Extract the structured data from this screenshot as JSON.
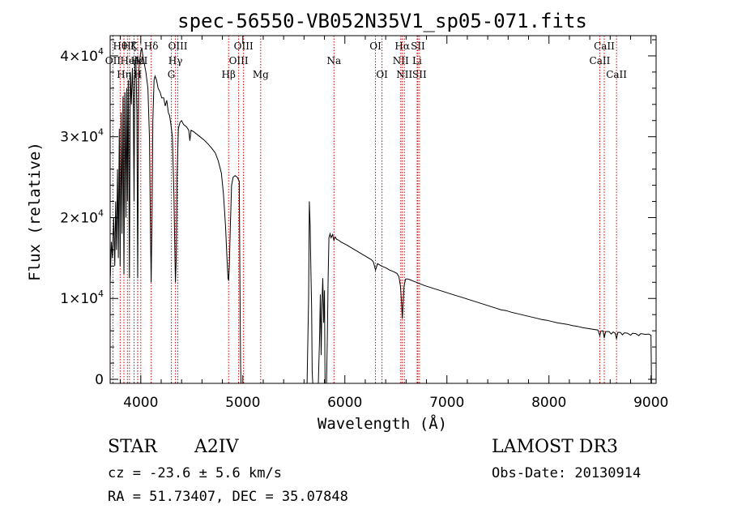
{
  "chart_data": {
    "type": "line",
    "title": "spec-56550-VB052N35V1_sp05-071.fits",
    "xlabel": "Wavelength (Å)",
    "ylabel": "Flux (relative)",
    "xlim": [
      3700,
      9050
    ],
    "ylim": [
      -500,
      42500
    ],
    "xticks": [
      {
        "value": 4000,
        "label": "4000"
      },
      {
        "value": 5000,
        "label": "5000"
      },
      {
        "value": 6000,
        "label": "6000"
      },
      {
        "value": 7000,
        "label": "7000"
      },
      {
        "value": 8000,
        "label": "8000"
      },
      {
        "value": 9000,
        "label": "9000"
      }
    ],
    "yticks": [
      {
        "value": 0,
        "label": "0"
      },
      {
        "value": 10000,
        "label": "1×10",
        "exp": "4"
      },
      {
        "value": 20000,
        "label": "2×10",
        "exp": "4"
      },
      {
        "value": 30000,
        "label": "3×10",
        "exp": "4"
      },
      {
        "value": 40000,
        "label": "4×10",
        "exp": "4"
      }
    ],
    "line_color": "#d80000",
    "spectral_lines": [
      {
        "wavelength": 3727,
        "label": "OII",
        "row": 2
      },
      {
        "wavelength": 3798,
        "label": "Hθ",
        "row": 1
      },
      {
        "wavelength": 3835,
        "label": "Hη",
        "row": 3
      },
      {
        "wavelength": 3869,
        "label": "He",
        "row": 2
      },
      {
        "wavelength": 3889,
        "label": "Hζ",
        "row": 1
      },
      {
        "wavelength": 3934,
        "label": "K",
        "row": 1
      },
      {
        "wavelength": 3969,
        "label": "H",
        "row": 3
      },
      {
        "wavelength": 3970,
        "label": "Hε",
        "row": 2
      },
      {
        "wavelength": 4000,
        "label": "AlI",
        "row": 2
      },
      {
        "wavelength": 4102,
        "label": "Hδ",
        "row": 1
      },
      {
        "wavelength": 4300,
        "label": "G",
        "row": 3
      },
      {
        "wavelength": 4340,
        "label": "Hγ",
        "row": 2
      },
      {
        "wavelength": 4363,
        "label": "OIII",
        "row": 1
      },
      {
        "wavelength": 4861,
        "label": "Hβ",
        "row": 3
      },
      {
        "wavelength": 4959,
        "label": "OIII",
        "row": 2
      },
      {
        "wavelength": 5007,
        "label": "OIII",
        "row": 1
      },
      {
        "wavelength": 5175,
        "label": "Mg",
        "row": 3
      },
      {
        "wavelength": 5893,
        "label": "Na",
        "row": 2
      },
      {
        "wavelength": 6300,
        "label": "OI",
        "row": 1
      },
      {
        "wavelength": 6364,
        "label": "OI",
        "row": 3
      },
      {
        "wavelength": 6548,
        "label": "NII",
        "row": 2
      },
      {
        "wavelength": 6563,
        "label": "Hα",
        "row": 1
      },
      {
        "wavelength": 6583,
        "label": "NII",
        "row": 3
      },
      {
        "wavelength": 6708,
        "label": "Li",
        "row": 2
      },
      {
        "wavelength": 6716,
        "label": "SII",
        "row": 1
      },
      {
        "wavelength": 6731,
        "label": "SII",
        "row": 3
      },
      {
        "wavelength": 8498,
        "label": "CaII",
        "row": 2
      },
      {
        "wavelength": 8542,
        "label": "CaII",
        "row": 1
      },
      {
        "wavelength": 8662,
        "label": "CaII",
        "row": 3
      }
    ],
    "spectrum": [
      [
        3700,
        12000
      ],
      [
        3712,
        17000
      ],
      [
        3722,
        15000
      ],
      [
        3735,
        20000
      ],
      [
        3745,
        14000
      ],
      [
        3754,
        22000
      ],
      [
        3762,
        16000
      ],
      [
        3772,
        26000
      ],
      [
        3780,
        15000
      ],
      [
        3790,
        31000
      ],
      [
        3798,
        14000
      ],
      [
        3808,
        33000
      ],
      [
        3816,
        18000
      ],
      [
        3826,
        35000
      ],
      [
        3835,
        13000
      ],
      [
        3845,
        35500
      ],
      [
        3855,
        20000
      ],
      [
        3863,
        36000
      ],
      [
        3870,
        22000
      ],
      [
        3878,
        37000
      ],
      [
        3889,
        12500
      ],
      [
        3898,
        38000
      ],
      [
        3908,
        34000
      ],
      [
        3918,
        38500
      ],
      [
        3926,
        35000
      ],
      [
        3934,
        22000
      ],
      [
        3942,
        39000
      ],
      [
        3952,
        40000
      ],
      [
        3962,
        33000
      ],
      [
        3970,
        12500
      ],
      [
        3980,
        38000
      ],
      [
        3990,
        39500
      ],
      [
        4000,
        40500
      ],
      [
        4010,
        41000
      ],
      [
        4020,
        40000
      ],
      [
        4035,
        39000
      ],
      [
        4050,
        38000
      ],
      [
        4070,
        36000
      ],
      [
        4085,
        30000
      ],
      [
        4095,
        18000
      ],
      [
        4102,
        12000
      ],
      [
        4110,
        20000
      ],
      [
        4118,
        32000
      ],
      [
        4130,
        37000
      ],
      [
        4140,
        37500
      ],
      [
        4155,
        37000
      ],
      [
        4170,
        36000
      ],
      [
        4190,
        35500
      ],
      [
        4205,
        34800
      ],
      [
        4225,
        34800
      ],
      [
        4240,
        33800
      ],
      [
        4255,
        34500
      ],
      [
        4270,
        33000
      ],
      [
        4283,
        32600
      ],
      [
        4295,
        31500
      ],
      [
        4310,
        30000
      ],
      [
        4325,
        23000
      ],
      [
        4335,
        15000
      ],
      [
        4340,
        12000
      ],
      [
        4348,
        15000
      ],
      [
        4356,
        25000
      ],
      [
        4368,
        31000
      ],
      [
        4385,
        31800
      ],
      [
        4400,
        32000
      ],
      [
        4420,
        31500
      ],
      [
        4450,
        31200
      ],
      [
        4470,
        30800
      ],
      [
        4481,
        29500
      ],
      [
        4492,
        30800
      ],
      [
        4520,
        30600
      ],
      [
        4550,
        30300
      ],
      [
        4580,
        30000
      ],
      [
        4620,
        29600
      ],
      [
        4660,
        29100
      ],
      [
        4700,
        28500
      ],
      [
        4730,
        28000
      ],
      [
        4760,
        27000
      ],
      [
        4790,
        25500
      ],
      [
        4810,
        23000
      ],
      [
        4830,
        19000
      ],
      [
        4845,
        15000
      ],
      [
        4855,
        12500
      ],
      [
        4861,
        12200
      ],
      [
        4868,
        14000
      ],
      [
        4878,
        19000
      ],
      [
        4890,
        24000
      ],
      [
        4905,
        25000
      ],
      [
        4925,
        25200
      ],
      [
        4945,
        25000
      ],
      [
        4965,
        24500
      ],
      [
        4972,
        12000
      ],
      [
        4978,
        2000
      ],
      [
        4982,
        -500
      ],
      [
        5630,
        -500
      ],
      [
        5645,
        10000
      ],
      [
        5652,
        22000
      ],
      [
        5660,
        19000
      ],
      [
        5668,
        13000
      ],
      [
        5674,
        9000
      ],
      [
        5680,
        1000
      ],
      [
        5685,
        -500
      ],
      [
        5740,
        -500
      ],
      [
        5752,
        5000
      ],
      [
        5760,
        10500
      ],
      [
        5768,
        3000
      ],
      [
        5775,
        9000
      ],
      [
        5784,
        12500
      ],
      [
        5792,
        7000
      ],
      [
        5800,
        11000
      ],
      [
        5806,
        -500
      ],
      [
        5820,
        -500
      ],
      [
        5828,
        5000
      ],
      [
        5836,
        12500
      ],
      [
        5844,
        17500
      ],
      [
        5855,
        18000
      ],
      [
        5865,
        17500
      ],
      [
        5880,
        17900
      ],
      [
        5892,
        17200
      ],
      [
        5905,
        17600
      ],
      [
        5920,
        17300
      ],
      [
        5940,
        17200
      ],
      [
        5960,
        17000
      ],
      [
        5990,
        16800
      ],
      [
        6020,
        16600
      ],
      [
        6060,
        16300
      ],
      [
        6100,
        16000
      ],
      [
        6140,
        15700
      ],
      [
        6180,
        15400
      ],
      [
        6220,
        15100
      ],
      [
        6260,
        14800
      ],
      [
        6280,
        14500
      ],
      [
        6300,
        13500
      ],
      [
        6320,
        14300
      ],
      [
        6360,
        14000
      ],
      [
        6400,
        13800
      ],
      [
        6440,
        13500
      ],
      [
        6480,
        13300
      ],
      [
        6510,
        13100
      ],
      [
        6530,
        12700
      ],
      [
        6545,
        11500
      ],
      [
        6555,
        9500
      ],
      [
        6563,
        7500
      ],
      [
        6571,
        9500
      ],
      [
        6580,
        11500
      ],
      [
        6595,
        12400
      ],
      [
        6620,
        12400
      ],
      [
        6660,
        12200
      ],
      [
        6700,
        12000
      ],
      [
        6740,
        11800
      ],
      [
        6780,
        11600
      ],
      [
        6830,
        11400
      ],
      [
        6880,
        11200
      ],
      [
        6930,
        11000
      ],
      [
        6980,
        10800
      ],
      [
        7030,
        10600
      ],
      [
        7080,
        10400
      ],
      [
        7130,
        10200
      ],
      [
        7180,
        10000
      ],
      [
        7230,
        9800
      ],
      [
        7280,
        9600
      ],
      [
        7330,
        9400
      ],
      [
        7380,
        9200
      ],
      [
        7430,
        9000
      ],
      [
        7480,
        8800
      ],
      [
        7530,
        8600
      ],
      [
        7580,
        8500
      ],
      [
        7630,
        8300
      ],
      [
        7680,
        8150
      ],
      [
        7730,
        8000
      ],
      [
        7780,
        7850
      ],
      [
        7830,
        7700
      ],
      [
        7880,
        7550
      ],
      [
        7930,
        7400
      ],
      [
        7980,
        7300
      ],
      [
        8030,
        7150
      ],
      [
        8080,
        7000
      ],
      [
        8130,
        6900
      ],
      [
        8180,
        6800
      ],
      [
        8230,
        6650
      ],
      [
        8280,
        6550
      ],
      [
        8330,
        6400
      ],
      [
        8380,
        6300
      ],
      [
        8430,
        6200
      ],
      [
        8480,
        6100
      ],
      [
        8498,
        5400
      ],
      [
        8510,
        6000
      ],
      [
        8530,
        6000
      ],
      [
        8542,
        5100
      ],
      [
        8555,
        5900
      ],
      [
        8590,
        5900
      ],
      [
        8610,
        5600
      ],
      [
        8630,
        5850
      ],
      [
        8650,
        5700
      ],
      [
        8662,
        5000
      ],
      [
        8675,
        5800
      ],
      [
        8700,
        5800
      ],
      [
        8720,
        5500
      ],
      [
        8740,
        5750
      ],
      [
        8770,
        5700
      ],
      [
        8800,
        5450
      ],
      [
        8820,
        5700
      ],
      [
        8850,
        5650
      ],
      [
        8880,
        5400
      ],
      [
        8900,
        5650
      ],
      [
        8925,
        5600
      ],
      [
        8950,
        5550
      ],
      [
        8975,
        5600
      ],
      [
        9000,
        5450
      ],
      [
        9005,
        -500
      ]
    ]
  },
  "info": {
    "object_class": "STAR",
    "subclass": "A2IV",
    "survey": "LAMOST DR3",
    "redshift_text": "cz = -23.6 ± 5.6 km/s",
    "obs_date": "Obs-Date: 20130914",
    "coords": "RA =  51.73407, DEC =  35.07848"
  }
}
